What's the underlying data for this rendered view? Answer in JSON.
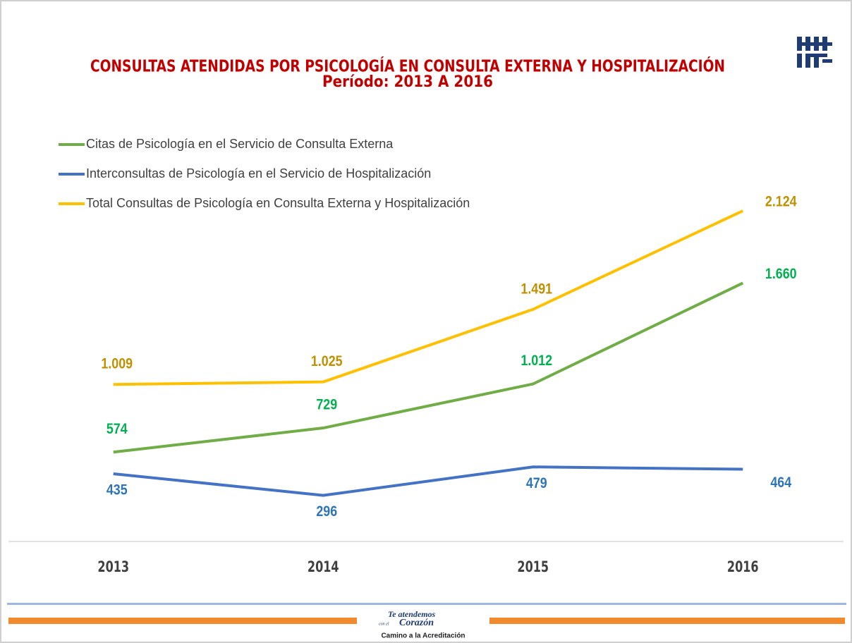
{
  "chart_data": {
    "type": "line",
    "title": "CONSULTAS ATENDIDAS POR PSICOLOGÍA EN CONSULTA EXTERNA Y HOSPITALIZACIÓN",
    "subtitle": "Período: 2013 A 2016",
    "categories": [
      "2013",
      "2014",
      "2015",
      "2016"
    ],
    "ylim": [
      0,
      2500
    ],
    "series": [
      {
        "name": "Citas de Psicología en el Servicio de Consulta Externa",
        "color": "#70ad47",
        "label_color": "#00b050",
        "values": [
          574,
          729,
          1012,
          1660
        ],
        "value_labels": [
          "574",
          "729",
          "1.012",
          "1.660"
        ]
      },
      {
        "name": "Interconsultas de Psicología en el Servicio de Hospitalización",
        "color": "#4472c4",
        "label_color": "#2e75b6",
        "values": [
          435,
          296,
          479,
          464
        ],
        "value_labels": [
          "435",
          "296",
          "479",
          "464"
        ]
      },
      {
        "name": "Total Consultas de Psicología en Consulta Externa y Hospitalización",
        "color": "#ffc000",
        "label_color": "#bf9000",
        "values": [
          1009,
          1025,
          1491,
          2124
        ],
        "value_labels": [
          "1.009",
          "1.025",
          "1.491",
          "2.124"
        ]
      }
    ]
  },
  "footer": {
    "slogan_top": "Te atendemos",
    "slogan_small": "con el",
    "slogan_main": "Corazón",
    "tagline": "Camino a la Acreditación"
  }
}
